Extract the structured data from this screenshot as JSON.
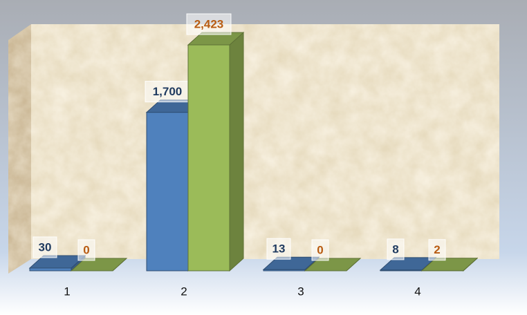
{
  "chart_data": {
    "type": "bar3d",
    "categories": [
      "1",
      "2",
      "3",
      "4"
    ],
    "series": [
      {
        "color": "#4f81bd",
        "values": [
          30,
          1700,
          13,
          8
        ],
        "value_labels": [
          "30",
          "1,700",
          "13",
          "8"
        ]
      },
      {
        "color": "#9bbb59",
        "values": [
          0,
          2423,
          0,
          2
        ],
        "value_labels": [
          "0",
          "2,423",
          "0",
          "2"
        ]
      }
    ]
  }
}
